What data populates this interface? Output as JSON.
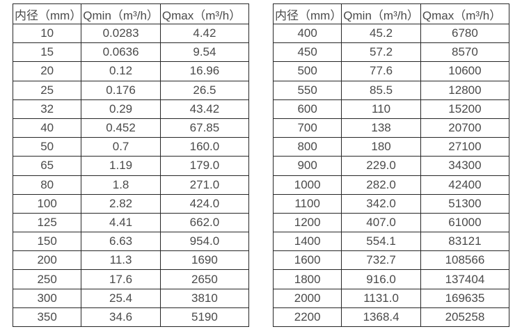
{
  "tables": [
    {
      "name": "small-diameter-flow-table",
      "headers": [
        "内径（mm）",
        "Qmin（m³/h）",
        "Qmax（m³/h）"
      ],
      "rows": [
        [
          "10",
          "0.0283",
          "4.42"
        ],
        [
          "15",
          "0.0636",
          "9.54"
        ],
        [
          "20",
          "0.12",
          "16.96"
        ],
        [
          "25",
          "0.176",
          "26.5"
        ],
        [
          "32",
          "0.29",
          "43.42"
        ],
        [
          "40",
          "0.452",
          "67.85"
        ],
        [
          "50",
          "0.7",
          "160.0"
        ],
        [
          "65",
          "1.19",
          "179.0"
        ],
        [
          "80",
          "1.8",
          "271.0"
        ],
        [
          "100",
          "2.82",
          "424.0"
        ],
        [
          "125",
          "4.41",
          "662.0"
        ],
        [
          "150",
          "6.63",
          "954.0"
        ],
        [
          "200",
          "11.3",
          "1690"
        ],
        [
          "250",
          "17.6",
          "2650"
        ],
        [
          "300",
          "25.4",
          "3810"
        ],
        [
          "350",
          "34.6",
          "5190"
        ]
      ]
    },
    {
      "name": "large-diameter-flow-table",
      "headers": [
        "内径（mm）",
        "Qmin（m³/h）",
        "Qmax（m³/h）"
      ],
      "rows": [
        [
          "400",
          "45.2",
          "6780"
        ],
        [
          "450",
          "57.2",
          "8570"
        ],
        [
          "500",
          "77.6",
          "10600"
        ],
        [
          "550",
          "85.5",
          "12800"
        ],
        [
          "600",
          "110",
          "15200"
        ],
        [
          "700",
          "138",
          "20700"
        ],
        [
          "800",
          "180",
          "27100"
        ],
        [
          "900",
          "229.0",
          "34300"
        ],
        [
          "1000",
          "282.0",
          "42400"
        ],
        [
          "1100",
          "342.0",
          "51300"
        ],
        [
          "1200",
          "407.0",
          "61000"
        ],
        [
          "1400",
          "554.1",
          "83121"
        ],
        [
          "1600",
          "732.7",
          "108566"
        ],
        [
          "1800",
          "916.0",
          "137404"
        ],
        [
          "2000",
          "1131.0",
          "169635"
        ],
        [
          "2200",
          "1368.4",
          "205258"
        ]
      ]
    }
  ],
  "colors": {
    "border": "#262626",
    "text": "#4a4a4a",
    "background": "#ffffff"
  }
}
